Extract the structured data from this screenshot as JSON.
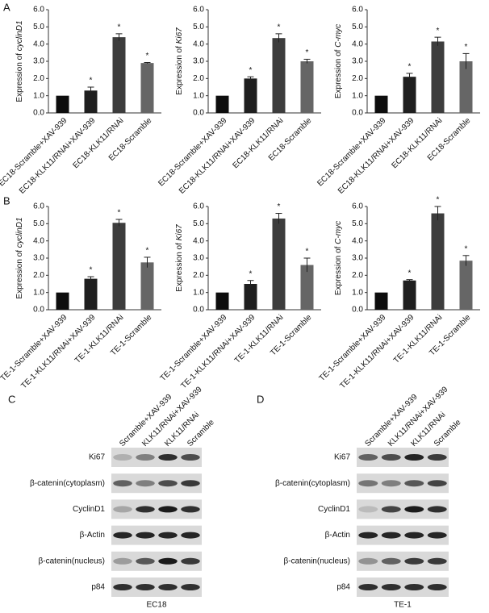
{
  "panel_labels": [
    "A",
    "B"
  ],
  "chart_data": [
    {
      "type": "bar",
      "ylabel": "Expression of",
      "ylabel_gene": "cyclinD1",
      "categories": [
        "EC18-Scramble+XAV-939",
        "EC18-KLK11/RNAi+XAV-939",
        "EC18-KLK11/RNAi",
        "EC18-Scramble"
      ],
      "values": [
        1,
        1.3,
        4.4,
        2.9
      ],
      "errors": [
        0,
        0.2,
        0.2,
        0.03
      ],
      "star_labels": [
        null,
        "*",
        "*",
        "*"
      ],
      "colors": [
        "#0d0d0d",
        "#1f1f1f",
        "#3d3d3d",
        "#666666"
      ],
      "ylim": [
        0,
        6
      ],
      "yticks": [
        {
          "value": 0,
          "label": "0.0"
        },
        {
          "value": 1,
          "label": "1.0"
        },
        {
          "value": 2,
          "label": "2.0"
        },
        {
          "value": 3,
          "label": "3.0"
        },
        {
          "value": 4,
          "label": "4.0"
        },
        {
          "value": 5,
          "label": "5.0"
        },
        {
          "value": 6,
          "label": "6.0"
        }
      ]
    },
    {
      "type": "bar",
      "ylabel": "Expression of",
      "ylabel_gene": "Ki67",
      "categories": [
        "EC18-Scramble+XAV-939",
        "EC18-KLK11/RNAi+XAV-939",
        "EC18-KLK11/RNAi",
        "EC18-Scramble"
      ],
      "values": [
        1,
        2.0,
        4.35,
        3.0
      ],
      "errors": [
        0,
        0.1,
        0.25,
        0.12
      ],
      "star_labels": [
        null,
        "*",
        "*",
        "*"
      ],
      "colors": [
        "#0d0d0d",
        "#1f1f1f",
        "#3d3d3d",
        "#666666"
      ],
      "ylim": [
        0,
        6
      ],
      "yticks": [
        {
          "value": 0,
          "label": "0.0"
        },
        {
          "value": 1,
          "label": "1.0"
        },
        {
          "value": 2,
          "label": "2.0"
        },
        {
          "value": 3,
          "label": "3.0"
        },
        {
          "value": 4,
          "label": "4.0"
        },
        {
          "value": 5,
          "label": "5.0"
        },
        {
          "value": 6,
          "label": "6.0"
        }
      ]
    },
    {
      "type": "bar",
      "ylabel": "Expression of",
      "ylabel_gene": "C-myc",
      "categories": [
        "EC18-Scramble+XAV-939",
        "EC18-KLK11/RNAi+XAV-939",
        "EC18-KLK11/RNAi",
        "EC18-Scramble"
      ],
      "values": [
        1,
        2.1,
        4.15,
        3.0
      ],
      "errors": [
        0,
        0.2,
        0.25,
        0.45
      ],
      "star_labels": [
        null,
        "*",
        "*",
        "*"
      ],
      "colors": [
        "#0d0d0d",
        "#1f1f1f",
        "#3d3d3d",
        "#666666"
      ],
      "ylim": [
        0,
        6
      ],
      "yticks": [
        {
          "value": 0,
          "label": "0.0"
        },
        {
          "value": 1,
          "label": "1.0"
        },
        {
          "value": 2,
          "label": "2.0"
        },
        {
          "value": 3,
          "label": "3.0"
        },
        {
          "value": 4,
          "label": "4.0"
        },
        {
          "value": 5,
          "label": "5.0"
        },
        {
          "value": 6,
          "label": "6.0"
        }
      ]
    },
    {
      "type": "bar",
      "ylabel": "Expression of",
      "ylabel_gene": "cyclinD1",
      "categories": [
        "TE-1-Scramble+XAV-939",
        "TE-1-KLK11/RNAi+XAV-939",
        "TE-1-KLK11/RNAi",
        "TE-1-Scramble"
      ],
      "values": [
        1,
        1.8,
        5.05,
        2.75
      ],
      "errors": [
        0,
        0.12,
        0.2,
        0.3
      ],
      "star_labels": [
        null,
        "*",
        "*",
        "*"
      ],
      "colors": [
        "#0d0d0d",
        "#1f1f1f",
        "#3d3d3d",
        "#666666"
      ],
      "ylim": [
        0,
        6
      ],
      "yticks": [
        {
          "value": 0,
          "label": "0.0"
        },
        {
          "value": 1,
          "label": "1.0"
        },
        {
          "value": 2,
          "label": "2.0"
        },
        {
          "value": 3,
          "label": "3.0"
        },
        {
          "value": 4,
          "label": "4.0"
        },
        {
          "value": 5,
          "label": "5.0"
        },
        {
          "value": 6,
          "label": "6.0"
        }
      ]
    },
    {
      "type": "bar",
      "ylabel": "Expression of",
      "ylabel_gene": "Ki67",
      "categories": [
        "TE-1-Scramble+XAV-939",
        "TE-1-KLK11/RNAi+XAV-939",
        "TE-1-KLK11/RNAi",
        "TE-1-Scramble"
      ],
      "values": [
        1,
        1.5,
        5.3,
        2.6
      ],
      "errors": [
        0,
        0.2,
        0.3,
        0.4
      ],
      "star_labels": [
        null,
        "*",
        "*",
        "*"
      ],
      "colors": [
        "#0d0d0d",
        "#1f1f1f",
        "#3d3d3d",
        "#666666"
      ],
      "ylim": [
        0,
        6
      ],
      "yticks": [
        {
          "value": 0,
          "label": "0.0"
        },
        {
          "value": 1,
          "label": "1.0"
        },
        {
          "value": 2,
          "label": "2.0"
        },
        {
          "value": 3,
          "label": "3.0"
        },
        {
          "value": 4,
          "label": "4.0"
        },
        {
          "value": 5,
          "label": "5.0"
        },
        {
          "value": 6,
          "label": "6.0"
        }
      ]
    },
    {
      "type": "bar",
      "ylabel": "Expression of",
      "ylabel_gene": "C-myc",
      "categories": [
        "TE-1-Scramble+XAV-939",
        "TE-1-KLK11/RNAi+XAV-939",
        "TE-1-KLK11/RNAi",
        "TE-1-Scramble"
      ],
      "values": [
        1,
        1.7,
        5.6,
        2.85
      ],
      "errors": [
        0,
        0.05,
        0.4,
        0.3
      ],
      "star_labels": [
        null,
        "*",
        "*",
        "*"
      ],
      "colors": [
        "#0d0d0d",
        "#1f1f1f",
        "#3d3d3d",
        "#666666"
      ],
      "ylim": [
        0,
        6
      ],
      "yticks": [
        {
          "value": 0,
          "label": "0.0"
        },
        {
          "value": 1,
          "label": "1.0"
        },
        {
          "value": 2,
          "label": "2.0"
        },
        {
          "value": 3,
          "label": "3.0"
        },
        {
          "value": 4,
          "label": "4.0"
        },
        {
          "value": 5,
          "label": "5.0"
        },
        {
          "value": 6,
          "label": "6.0"
        }
      ]
    }
  ],
  "blots": [
    {
      "panel": "C",
      "columns": [
        "Scramble+XAV-939",
        "KLK11/RNAi+XAV-939",
        "KLK11/RNAi",
        "Scramble"
      ],
      "rows": [
        "Ki67",
        "β-catenin(cytoplasm)",
        "CyclinD1",
        "β-Actin",
        "β-catenin(nucleus)",
        "p84"
      ],
      "caption": "EC18"
    },
    {
      "panel": "D",
      "columns": [
        "Scramble+XAV-939",
        "KLK11/RNAi+XAV-939",
        "KLK11/RNAi",
        "Scramble"
      ],
      "rows": [
        "Ki67",
        "β-catenin(cytoplasm)",
        "CyclinD1",
        "β-Actin",
        "β-catenin(nucleus)",
        "p84"
      ],
      "caption": "TE-1"
    }
  ]
}
